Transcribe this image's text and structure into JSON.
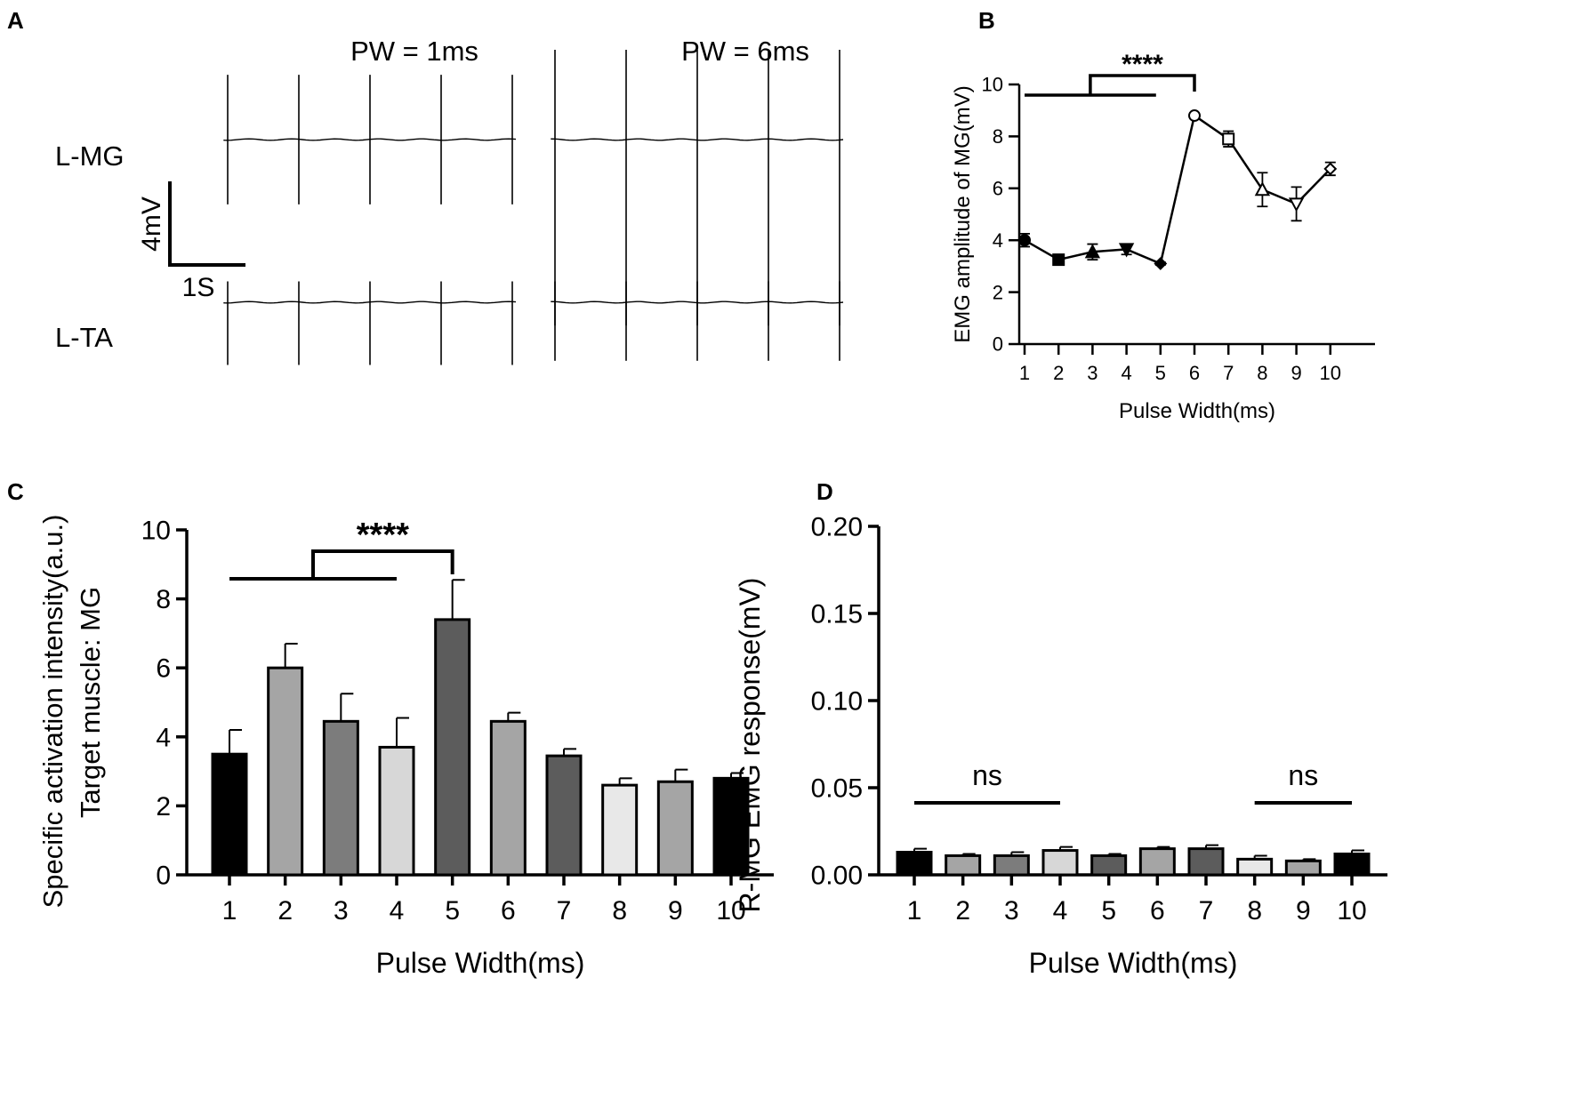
{
  "figure": {
    "panel_labels": [
      "A",
      "B",
      "C",
      "D"
    ]
  },
  "chart_data": [
    {
      "panel": "A",
      "type": "line",
      "title": "",
      "conditions": [
        "PW = 1ms",
        "PW = 6ms"
      ],
      "traces": [
        "L-MG",
        "L-TA"
      ],
      "scale_bar": {
        "vertical": "4mV",
        "horizontal": "1S"
      },
      "series": [
        {
          "name": "L-MG PW = 1ms",
          "condition": "PW = 1ms",
          "trace": "L-MG",
          "pulses": 5,
          "peak_up_mV": 3.1,
          "peak_down_mV": 3.1
        },
        {
          "name": "L-MG PW = 6ms",
          "condition": "PW = 6ms",
          "trace": "L-MG",
          "pulses": 5,
          "peak_up_mV": 4.3,
          "peak_down_mV": 8.9
        },
        {
          "name": "L-TA PW = 1ms",
          "condition": "PW = 1ms",
          "trace": "L-TA",
          "pulses": 5,
          "peak_up_mV": 1.0,
          "peak_down_mV": 3.0
        },
        {
          "name": "L-TA PW = 6ms",
          "condition": "PW = 6ms",
          "trace": "L-TA",
          "pulses": 5,
          "peak_up_mV": 1.0,
          "peak_down_mV": 2.8
        }
      ]
    },
    {
      "panel": "B",
      "type": "line",
      "title": "",
      "xlabel": "Pulse Width(ms)",
      "ylabel": "EMG amplitude of MG(mV)",
      "x": [
        1,
        2,
        3,
        4,
        5,
        6,
        7,
        8,
        9,
        10
      ],
      "x_tick_labels": [
        "1",
        "2",
        "3",
        "4",
        "5",
        "6",
        "7",
        "8",
        "9",
        "10"
      ],
      "ylim": [
        0,
        10
      ],
      "yticks": [
        "0",
        "2",
        "4",
        "6",
        "8",
        "10"
      ],
      "series": [
        {
          "name": "MG amplitude",
          "values": [
            4.0,
            3.25,
            3.55,
            3.65,
            3.1,
            8.8,
            7.9,
            5.95,
            5.4,
            6.75
          ],
          "errors": [
            0.25,
            0.1,
            0.3,
            0.2,
            0.05,
            0.1,
            0.3,
            0.65,
            0.65,
            0.25
          ],
          "markers": [
            "circle",
            "square",
            "triangle-up",
            "triangle-down",
            "diamond",
            "circle-open",
            "square-open",
            "triangle-up-open",
            "triangle-down-open",
            "diamond-open"
          ]
        }
      ],
      "significance": {
        "label": "****",
        "group": [
          1,
          5
        ],
        "vs": 6
      }
    },
    {
      "panel": "C",
      "type": "bar",
      "title": "",
      "xlabel": "Pulse Width(ms)",
      "ylabel": [
        "Specific activation intensity(a.u.)",
        "Target muscle: MG"
      ],
      "categories": [
        "1",
        "2",
        "3",
        "4",
        "5",
        "6",
        "7",
        "8",
        "9",
        "10"
      ],
      "ylim": [
        0,
        10
      ],
      "yticks": [
        "0",
        "2",
        "4",
        "6",
        "8",
        "10"
      ],
      "series": [
        {
          "name": "Specific activation intensity",
          "values": [
            3.5,
            6.0,
            4.45,
            3.7,
            7.4,
            4.45,
            3.45,
            2.6,
            2.7,
            2.8
          ],
          "errors": [
            0.7,
            0.7,
            0.8,
            0.85,
            1.15,
            0.25,
            0.2,
            0.2,
            0.35,
            0.15
          ],
          "colors": [
            "#000000",
            "#a5a5a5",
            "#7c7c7c",
            "#d7d7d7",
            "#5c5c5c",
            "#a5a5a5",
            "#5c5c5c",
            "#e8e8e8",
            "#a5a5a5",
            "#000000"
          ]
        }
      ],
      "significance": {
        "label": "****",
        "group": [
          1,
          4
        ],
        "vs": 5
      }
    },
    {
      "panel": "D",
      "type": "bar",
      "title": "",
      "xlabel": "Pulse Width(ms)",
      "ylabel": "R-MG EMG response(mV)",
      "categories": [
        "1",
        "2",
        "3",
        "4",
        "5",
        "6",
        "7",
        "8",
        "9",
        "10"
      ],
      "ylim": [
        0,
        0.2
      ],
      "yticks": [
        "0.00",
        "0.05",
        "0.10",
        "0.15",
        "0.20"
      ],
      "series": [
        {
          "name": "R-MG EMG response",
          "values": [
            0.013,
            0.011,
            0.011,
            0.014,
            0.011,
            0.015,
            0.015,
            0.009,
            0.008,
            0.012
          ],
          "errors": [
            0.002,
            0.001,
            0.002,
            0.002,
            0.001,
            0.001,
            0.002,
            0.002,
            0.001,
            0.002
          ],
          "colors": [
            "#000000",
            "#a5a5a5",
            "#7c7c7c",
            "#d7d7d7",
            "#5c5c5c",
            "#a5a5a5",
            "#5c5c5c",
            "#e8e8e8",
            "#a5a5a5",
            "#000000"
          ]
        }
      ],
      "significance": [
        {
          "label": "ns",
          "group": [
            1,
            4
          ]
        },
        {
          "label": "ns",
          "group": [
            8,
            10
          ]
        }
      ]
    }
  ]
}
